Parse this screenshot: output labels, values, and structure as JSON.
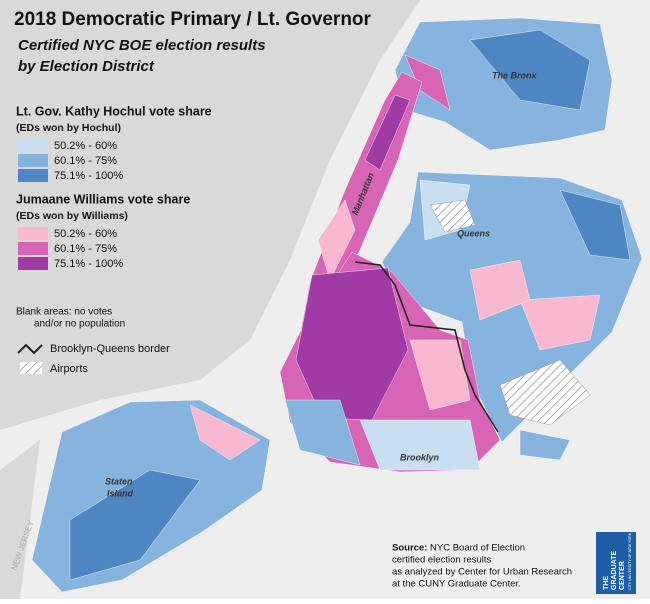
{
  "header": {
    "title": "2018 Democratic Primary / Lt. Governor",
    "subtitle_lines": [
      "Certified NYC BOE election results",
      "by Election District"
    ]
  },
  "legend": {
    "groups": [
      {
        "title": "Lt. Gov. Kathy Hochul vote share",
        "subtitle": "(EDs won by Hochul)",
        "items": [
          {
            "label": "50.2% - 60%",
            "color": "#c9def0"
          },
          {
            "label": "60.1% - 75%",
            "color": "#86b4de"
          },
          {
            "label": "75.1% - 100%",
            "color": "#4e86c3"
          }
        ]
      },
      {
        "title": "Jumaane Williams vote share",
        "subtitle": "(EDs won by Williams)",
        "items": [
          {
            "label": "50.2% - 60%",
            "color": "#f7b8d0"
          },
          {
            "label": "60.1% - 75%",
            "color": "#d764b4"
          },
          {
            "label": "75.1% - 100%",
            "color": "#a03aa4"
          }
        ]
      }
    ],
    "blank_note": [
      "Blank areas: no votes",
      "and/or no population"
    ],
    "border_label": "Brooklyn-Queens border",
    "airports_label": "Airports"
  },
  "places": {
    "bronx": "The Bronx",
    "manhattan": "Manhattan",
    "queens": "Queens",
    "brooklyn": "Brooklyn",
    "staten_island": [
      "Staten",
      "Island"
    ],
    "new_jersey": "NEW JERSEY"
  },
  "source": {
    "label": "Source:",
    "lines": [
      "NYC Board of Election",
      "certified election results",
      "as analyzed by Center for Urban Research",
      "at the CUNY Graduate Center."
    ]
  },
  "logo": {
    "name": [
      "THE",
      "GRADUATE",
      "CENTER"
    ],
    "university": "CITY UNIVERSITY OF NEW YORK"
  }
}
